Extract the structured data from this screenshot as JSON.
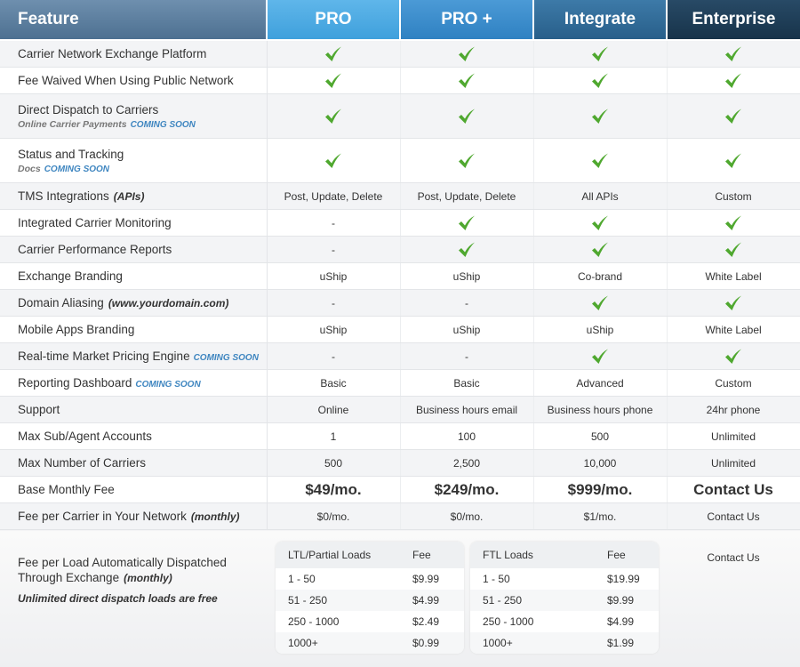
{
  "header": {
    "feature": "Feature",
    "plans": [
      "PRO",
      "PRO +",
      "Integrate",
      "Enterprise"
    ]
  },
  "rows": [
    {
      "feature": "Carrier Network Exchange Platform",
      "cells": [
        true,
        true,
        true,
        true
      ]
    },
    {
      "feature": "Fee Waived When Using Public Network",
      "cells": [
        true,
        true,
        true,
        true
      ]
    },
    {
      "feature": "Direct Dispatch to Carriers",
      "note": "Online Carrier Payments",
      "note_tag": "COMING SOON",
      "cells": [
        true,
        true,
        true,
        true
      ]
    },
    {
      "feature": "Status and Tracking",
      "note": "Docs",
      "note_tag": "COMING SOON",
      "cells": [
        true,
        true,
        true,
        true
      ]
    },
    {
      "feature": "TMS Integrations",
      "feature_em": "(APIs)",
      "cells": [
        "Post, Update, Delete",
        "Post, Update, Delete",
        "All APIs",
        "Custom"
      ]
    },
    {
      "feature": "Integrated Carrier Monitoring",
      "cells": [
        "-",
        true,
        true,
        true
      ]
    },
    {
      "feature": "Carrier Performance Reports",
      "cells": [
        "-",
        true,
        true,
        true
      ]
    },
    {
      "feature": "Exchange Branding",
      "cells": [
        "uShip",
        "uShip",
        "Co-brand",
        "White Label"
      ]
    },
    {
      "feature": "Domain Aliasing",
      "feature_em": "(www.yourdomain.com)",
      "cells": [
        "-",
        "-",
        true,
        true
      ]
    },
    {
      "feature": "Mobile Apps Branding",
      "cells": [
        "uShip",
        "uShip",
        "uShip",
        "White Label"
      ]
    },
    {
      "feature": "Real-time Market Pricing Engine",
      "tag": "COMING SOON",
      "cells": [
        "-",
        "-",
        true,
        true
      ]
    },
    {
      "feature": "Reporting Dashboard",
      "tag": "COMING SOON",
      "cells": [
        "Basic",
        "Basic",
        "Advanced",
        "Custom"
      ]
    },
    {
      "feature": "Support",
      "cells": [
        "Online",
        "Business hours email",
        "Business hours phone",
        "24hr phone"
      ]
    },
    {
      "feature": "Max Sub/Agent Accounts",
      "cells": [
        "1",
        "100",
        "500",
        "Unlimited"
      ]
    },
    {
      "feature": "Max Number of Carriers",
      "cells": [
        "500",
        "2,500",
        "10,000",
        "Unlimited"
      ]
    },
    {
      "feature": "Base Monthly Fee",
      "cells": [
        "$49/mo.",
        "$249/mo.",
        "$999/mo.",
        "Contact Us"
      ]
    },
    {
      "feature": "Fee per Carrier in Your Network",
      "feature_em": "(monthly)",
      "cells": [
        "$0/mo.",
        "$0/mo.",
        "$1/mo.",
        "Contact Us"
      ]
    }
  ],
  "dispatch": {
    "feature": "Fee per Load Automatically Dispatched Through Exchange",
    "feature_em": "(monthly)",
    "note": "Unlimited direct dispatch loads are free",
    "tables": [
      {
        "columns": [
          "LTL/Partial Loads",
          "Fee"
        ],
        "rows": [
          [
            "1 - 50",
            "$9.99"
          ],
          [
            "51 - 250",
            "$4.99"
          ],
          [
            "250 - 1000",
            "$2.49"
          ],
          [
            "1000+",
            "$0.99"
          ]
        ]
      },
      {
        "columns": [
          "FTL Loads",
          "Fee"
        ],
        "rows": [
          [
            "1 - 50",
            "$19.99"
          ],
          [
            "51 - 250",
            "$9.99"
          ],
          [
            "250 - 1000",
            "$4.99"
          ],
          [
            "1000+",
            "$1.99"
          ]
        ]
      }
    ],
    "enterprise": "Contact Us"
  }
}
